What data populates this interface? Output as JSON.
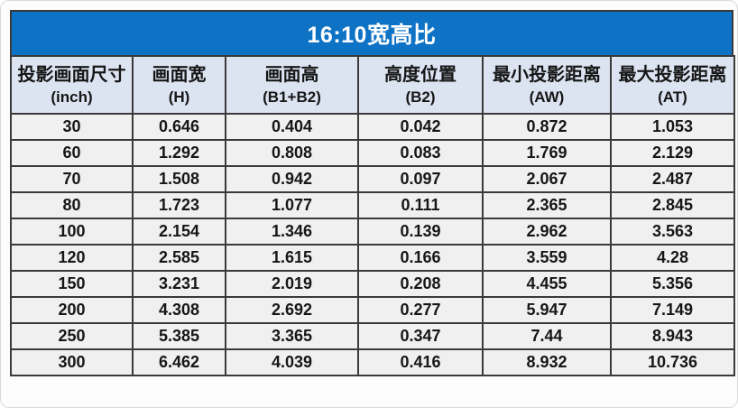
{
  "chart_data": {
    "type": "table",
    "title": "16:10宽高比",
    "columns": [
      {
        "label": "投影画面尺寸",
        "sub": "(inch)"
      },
      {
        "label": "画面宽",
        "sub": "(H)"
      },
      {
        "label": "画面高",
        "sub": "(B1+B2)"
      },
      {
        "label": "高度位置",
        "sub": "(B2)"
      },
      {
        "label": "最小投影距离",
        "sub": "(AW)"
      },
      {
        "label": "最大投影距离",
        "sub": "(AT)"
      }
    ],
    "rows": [
      [
        "30",
        "0.646",
        "0.404",
        "0.042",
        "0.872",
        "1.053"
      ],
      [
        "60",
        "1.292",
        "0.808",
        "0.083",
        "1.769",
        "2.129"
      ],
      [
        "70",
        "1.508",
        "0.942",
        "0.097",
        "2.067",
        "2.487"
      ],
      [
        "80",
        "1.723",
        "1.077",
        "0.111",
        "2.365",
        "2.845"
      ],
      [
        "100",
        "2.154",
        "1.346",
        "0.139",
        "2.962",
        "3.563"
      ],
      [
        "120",
        "2.585",
        "1.615",
        "0.166",
        "3.559",
        "4.28"
      ],
      [
        "150",
        "3.231",
        "2.019",
        "0.208",
        "4.455",
        "5.356"
      ],
      [
        "200",
        "4.308",
        "2.692",
        "0.277",
        "5.947",
        "7.149"
      ],
      [
        "250",
        "5.385",
        "3.365",
        "0.347",
        "7.44",
        "8.943"
      ],
      [
        "300",
        "6.462",
        "4.039",
        "0.416",
        "8.932",
        "10.736"
      ]
    ]
  },
  "colors": {
    "title_bg": "#0E72C5",
    "title_text": "#FFFFFF",
    "header_bg": "#DCE4F2",
    "row_bg": "#F0F0F0",
    "border": "#3A3A3A",
    "text": "#161616"
  }
}
